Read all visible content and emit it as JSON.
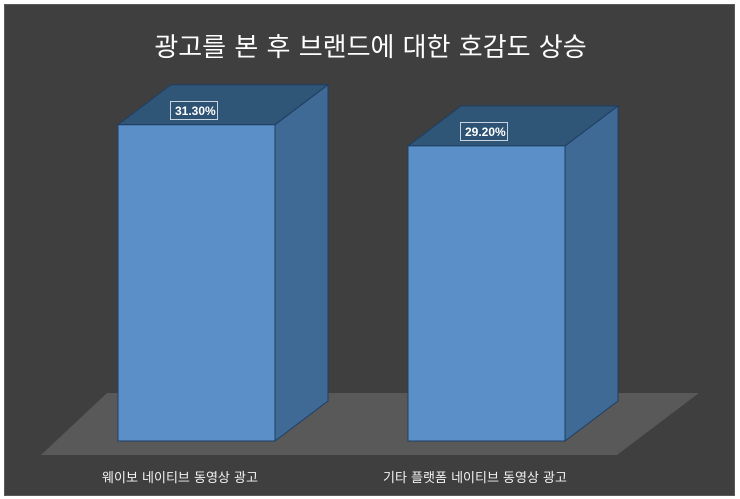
{
  "chart_data": {
    "type": "bar",
    "title": "광고를 본 후 브랜드에 대한 호감도 상승",
    "categories": [
      "웨이보 네이티브 동영상 광고",
      "기타 플랫폼 네이티브 동영상 광고"
    ],
    "values": [
      31.3,
      29.2
    ],
    "value_labels": [
      "31.30%",
      "29.20%"
    ],
    "xlabel": "",
    "ylabel": "",
    "grid": false,
    "legend": "none",
    "style": "3d-column"
  },
  "colors": {
    "background": "#3f3f3f",
    "floor": "#595959",
    "bar_front": "#5b8fc7",
    "bar_side": "#3f6a96",
    "bar_top": "#2f5577",
    "bar_edge": "#1f3f63",
    "text": "#ffffff"
  }
}
